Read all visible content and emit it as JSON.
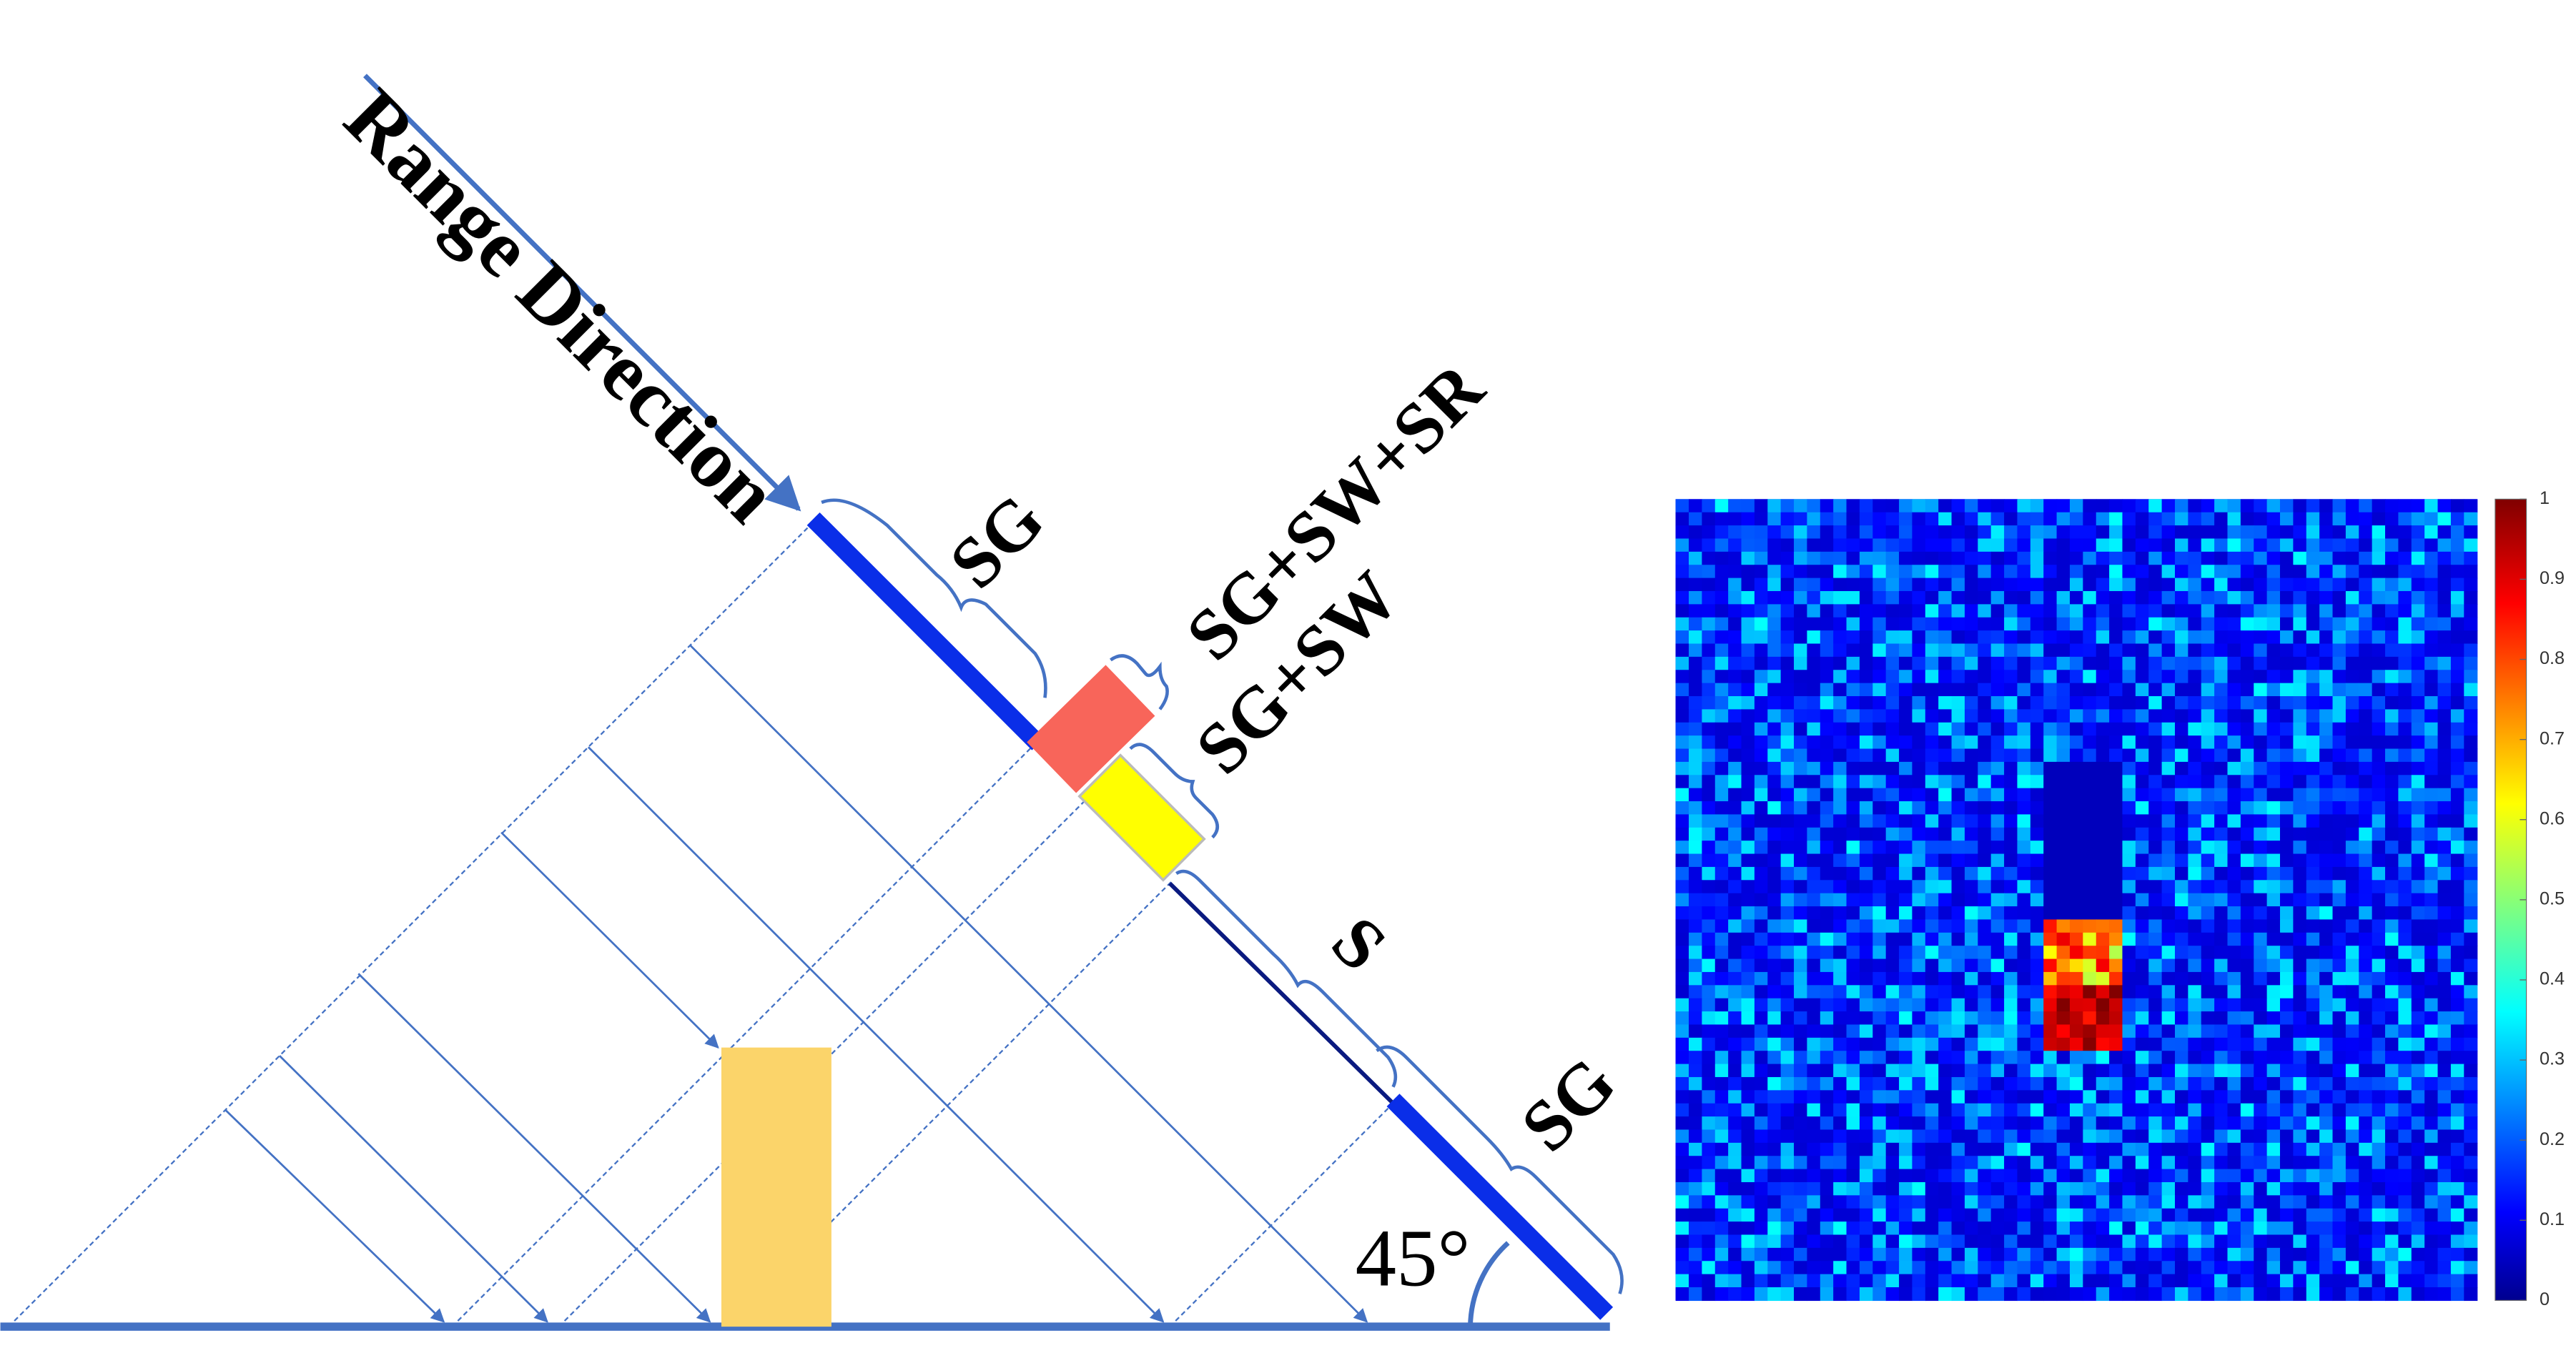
{
  "labels": {
    "range_direction": "Range Direction",
    "sg_top": "SG",
    "sg_sw_sr": "SG+SW+SR",
    "sg_sw": "SG+SW",
    "s": "S",
    "sg_bottom": "SG",
    "angle": "45°"
  },
  "colorbar": {
    "lim": [
      0,
      1
    ],
    "ticks": [
      0,
      0.1,
      0.2,
      0.3,
      0.4,
      0.5,
      0.6,
      0.7,
      0.8,
      0.9,
      1
    ]
  }
}
